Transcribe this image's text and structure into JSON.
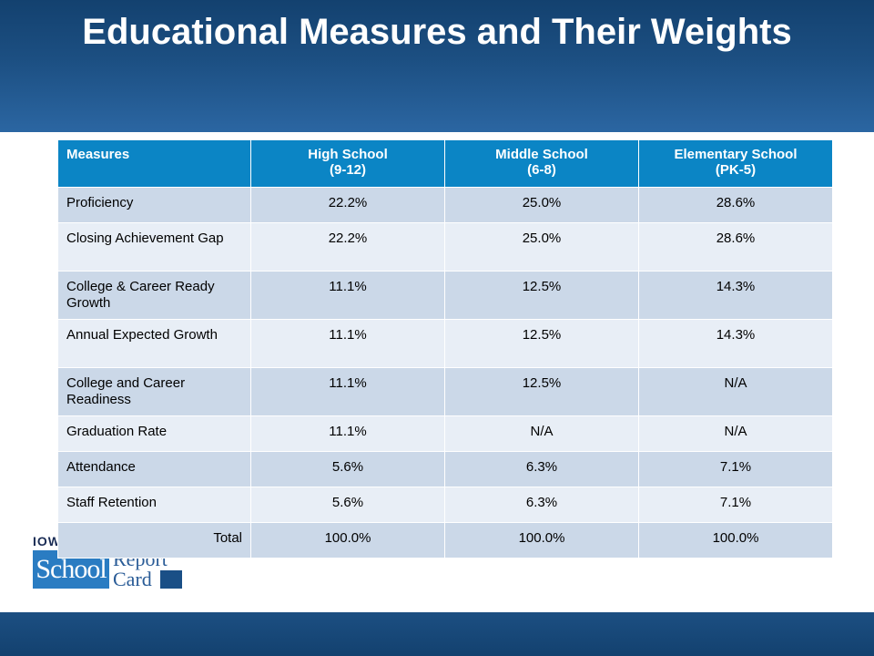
{
  "slide": {
    "title": "Educational Measures and Their Weights"
  },
  "logo": {
    "top_text": "IOW",
    "school": "School",
    "report": "Report",
    "card": "Card"
  },
  "table": {
    "headers": [
      {
        "line1": "Measures",
        "line2": ""
      },
      {
        "line1": "High School",
        "line2": "(9-12)"
      },
      {
        "line1": "Middle School",
        "line2": "(6-8)"
      },
      {
        "line1": "Elementary School",
        "line2": "(PK-5)"
      }
    ],
    "rows": [
      {
        "measure": "Proficiency",
        "high": "22.2%",
        "middle": "25.0%",
        "elementary": "28.6%"
      },
      {
        "measure": "Closing Achievement Gap",
        "high": "22.2%",
        "middle": "25.0%",
        "elementary": "28.6%"
      },
      {
        "measure": "College & Career Ready Growth",
        "high": "11.1%",
        "middle": "12.5%",
        "elementary": "14.3%"
      },
      {
        "measure": "Annual Expected Growth",
        "high": "11.1%",
        "middle": "12.5%",
        "elementary": "14.3%"
      },
      {
        "measure": "College and Career Readiness",
        "high": "11.1%",
        "middle": "12.5%",
        "elementary": "N/A"
      },
      {
        "measure": "Graduation Rate",
        "high": "11.1%",
        "middle": "N/A",
        "elementary": "N/A"
      },
      {
        "measure": "Attendance",
        "high": "5.6%",
        "middle": "6.3%",
        "elementary": "7.1%"
      },
      {
        "measure": "Staff Retention",
        "high": "5.6%",
        "middle": "6.3%",
        "elementary": "7.1%"
      },
      {
        "measure": "Total",
        "high": "100.0%",
        "middle": "100.0%",
        "elementary": "100.0%"
      }
    ]
  },
  "colors": {
    "header_bg": "#1c4f82",
    "table_header": "#0b85c5",
    "row_dark": "#cbd8e8",
    "row_light": "#e8eef6"
  }
}
